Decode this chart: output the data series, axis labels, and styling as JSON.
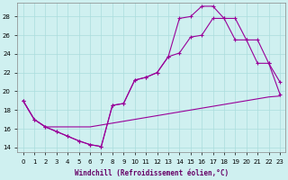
{
  "xlabel": "Windchill (Refroidissement éolien,°C)",
  "background_color": "#cff0f0",
  "grid_color": "#aadddd",
  "line_color": "#990099",
  "xlim": [
    -0.5,
    23.5
  ],
  "ylim": [
    13.5,
    29.5
  ],
  "yticks": [
    14,
    16,
    18,
    20,
    22,
    24,
    26,
    28
  ],
  "series": [
    {
      "x": [
        0,
        1,
        2,
        3,
        4,
        5,
        6,
        7,
        8,
        9,
        10,
        11,
        12,
        13,
        14,
        15,
        16,
        17,
        18,
        19,
        20,
        21,
        22,
        23
      ],
      "y": [
        19.0,
        17.0,
        16.2,
        16.2,
        16.2,
        16.2,
        16.2,
        16.4,
        16.6,
        16.8,
        17.0,
        17.2,
        17.4,
        17.6,
        17.8,
        18.0,
        18.2,
        18.4,
        18.6,
        18.8,
        19.0,
        19.2,
        19.4,
        19.5
      ],
      "marker": false
    },
    {
      "x": [
        0,
        1,
        2,
        3,
        4,
        5,
        6,
        7,
        8,
        9,
        10,
        11,
        12,
        13,
        14,
        15,
        16,
        17,
        18,
        19,
        20,
        21,
        22,
        23
      ],
      "y": [
        19.0,
        17.0,
        16.2,
        15.7,
        15.2,
        14.7,
        14.3,
        14.1,
        18.5,
        18.7,
        21.2,
        21.5,
        22.0,
        23.7,
        24.1,
        25.8,
        26.0,
        27.8,
        27.8,
        25.5,
        25.5,
        23.0,
        23.0,
        21.0
      ],
      "marker": true
    },
    {
      "x": [
        0,
        1,
        2,
        3,
        4,
        5,
        6,
        7,
        8,
        9,
        10,
        11,
        12,
        13,
        14,
        15,
        16,
        17,
        18,
        19,
        20,
        21,
        22,
        23
      ],
      "y": [
        19.0,
        17.0,
        16.2,
        15.7,
        15.2,
        14.7,
        14.3,
        14.1,
        18.5,
        18.7,
        21.2,
        21.5,
        22.0,
        23.7,
        27.8,
        28.0,
        29.1,
        29.1,
        27.8,
        27.8,
        25.5,
        25.5,
        23.0,
        19.7
      ],
      "marker": true
    }
  ]
}
